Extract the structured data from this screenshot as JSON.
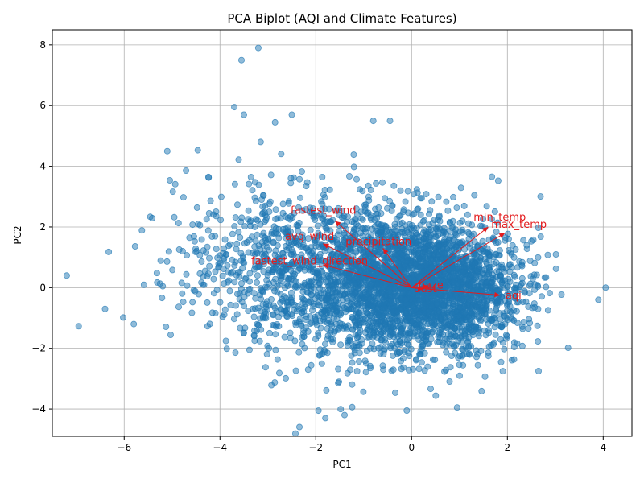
{
  "chart_data": {
    "type": "scatter",
    "title": "PCA Biplot (AQI and Climate Features)",
    "xlabel": "PC1",
    "ylabel": "PC2",
    "xlim": [
      -7.5,
      4.6
    ],
    "ylim": [
      -4.9,
      8.5
    ],
    "xticks": [
      -6,
      -4,
      -2,
      0,
      2,
      4
    ],
    "yticks": [
      -4,
      -2,
      0,
      2,
      4,
      6,
      8
    ],
    "grid": true,
    "point_color": "#1f77b4",
    "arrow_color": "#e31a1c",
    "point_count_approx": 4000,
    "notable_points": [
      {
        "x": -7.2,
        "y": 0.4
      },
      {
        "x": -6.4,
        "y": -0.7
      },
      {
        "x": -5.8,
        "y": -1.2
      },
      {
        "x": -3.2,
        "y": 7.9
      },
      {
        "x": -3.55,
        "y": 7.5
      },
      {
        "x": -3.7,
        "y": 5.95
      },
      {
        "x": -3.5,
        "y": 5.7
      },
      {
        "x": -2.85,
        "y": 5.45
      },
      {
        "x": -2.5,
        "y": 5.7
      },
      {
        "x": -3.15,
        "y": 4.8
      },
      {
        "x": -0.8,
        "y": 5.5
      },
      {
        "x": -0.45,
        "y": 5.5
      },
      {
        "x": -5.1,
        "y": 4.5
      },
      {
        "x": 4.05,
        "y": 0.0
      },
      {
        "x": 3.9,
        "y": -0.4
      },
      {
        "x": -1.8,
        "y": -4.3
      },
      {
        "x": -1.4,
        "y": -4.2
      },
      {
        "x": 0.95,
        "y": -3.95
      },
      {
        "x": -0.1,
        "y": -4.05
      },
      {
        "x": 2.65,
        "y": -2.75
      }
    ],
    "loadings": [
      {
        "name": "fastest_wind",
        "x": -1.6,
        "y": 2.2
      },
      {
        "name": "avg_wind",
        "x": -1.85,
        "y": 1.45
      },
      {
        "name": "precipitation",
        "x": -0.6,
        "y": 1.3
      },
      {
        "name": "fastest_wind_direction",
        "x": -1.85,
        "y": 0.75
      },
      {
        "name": "min_temp",
        "x": 1.6,
        "y": 2.0
      },
      {
        "name": "max_temp",
        "x": 1.95,
        "y": 1.8
      },
      {
        "name": "haze",
        "x": 0.35,
        "y": 0.05
      },
      {
        "name": "dust",
        "x": 0.25,
        "y": -0.05
      },
      {
        "name": "aqi",
        "x": 1.85,
        "y": -0.25
      }
    ]
  }
}
